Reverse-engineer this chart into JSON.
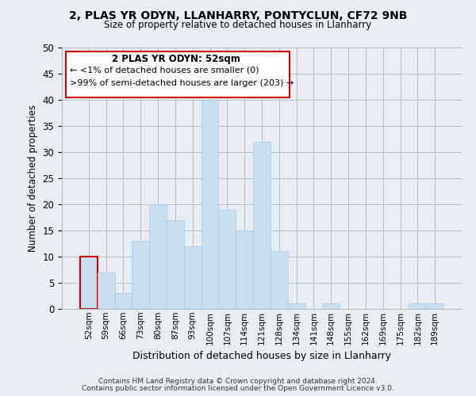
{
  "title": "2, PLAS YR ODYN, LLANHARRY, PONTYCLUN, CF72 9NB",
  "subtitle": "Size of property relative to detached houses in Llanharry",
  "xlabel": "Distribution of detached houses by size in Llanharry",
  "ylabel": "Number of detached properties",
  "bar_labels": [
    "52sqm",
    "59sqm",
    "66sqm",
    "73sqm",
    "80sqm",
    "87sqm",
    "93sqm",
    "100sqm",
    "107sqm",
    "114sqm",
    "121sqm",
    "128sqm",
    "134sqm",
    "141sqm",
    "148sqm",
    "155sqm",
    "162sqm",
    "169sqm",
    "175sqm",
    "182sqm",
    "189sqm"
  ],
  "bar_values": [
    10,
    7,
    3,
    13,
    20,
    17,
    12,
    40,
    19,
    15,
    32,
    11,
    1,
    0,
    1,
    0,
    0,
    0,
    0,
    1,
    1
  ],
  "bar_color": "#c8dff0",
  "bar_edge_color": "#a8c8e8",
  "highlight_color": "#cc0000",
  "highlight_index": 0,
  "ylim": [
    0,
    50
  ],
  "yticks": [
    0,
    5,
    10,
    15,
    20,
    25,
    30,
    35,
    40,
    45,
    50
  ],
  "annotation_title": "2 PLAS YR ODYN: 52sqm",
  "annotation_line1": "← <1% of detached houses are smaller (0)",
  "annotation_line2": ">99% of semi-detached houses are larger (203) →",
  "footer_line1": "Contains HM Land Registry data © Crown copyright and database right 2024.",
  "footer_line2": "Contains public sector information licensed under the Open Government Licence v3.0.",
  "background_color": "#e8eef4",
  "plot_bg_color": "#e8eef4",
  "grid_color": "#b0bec5"
}
